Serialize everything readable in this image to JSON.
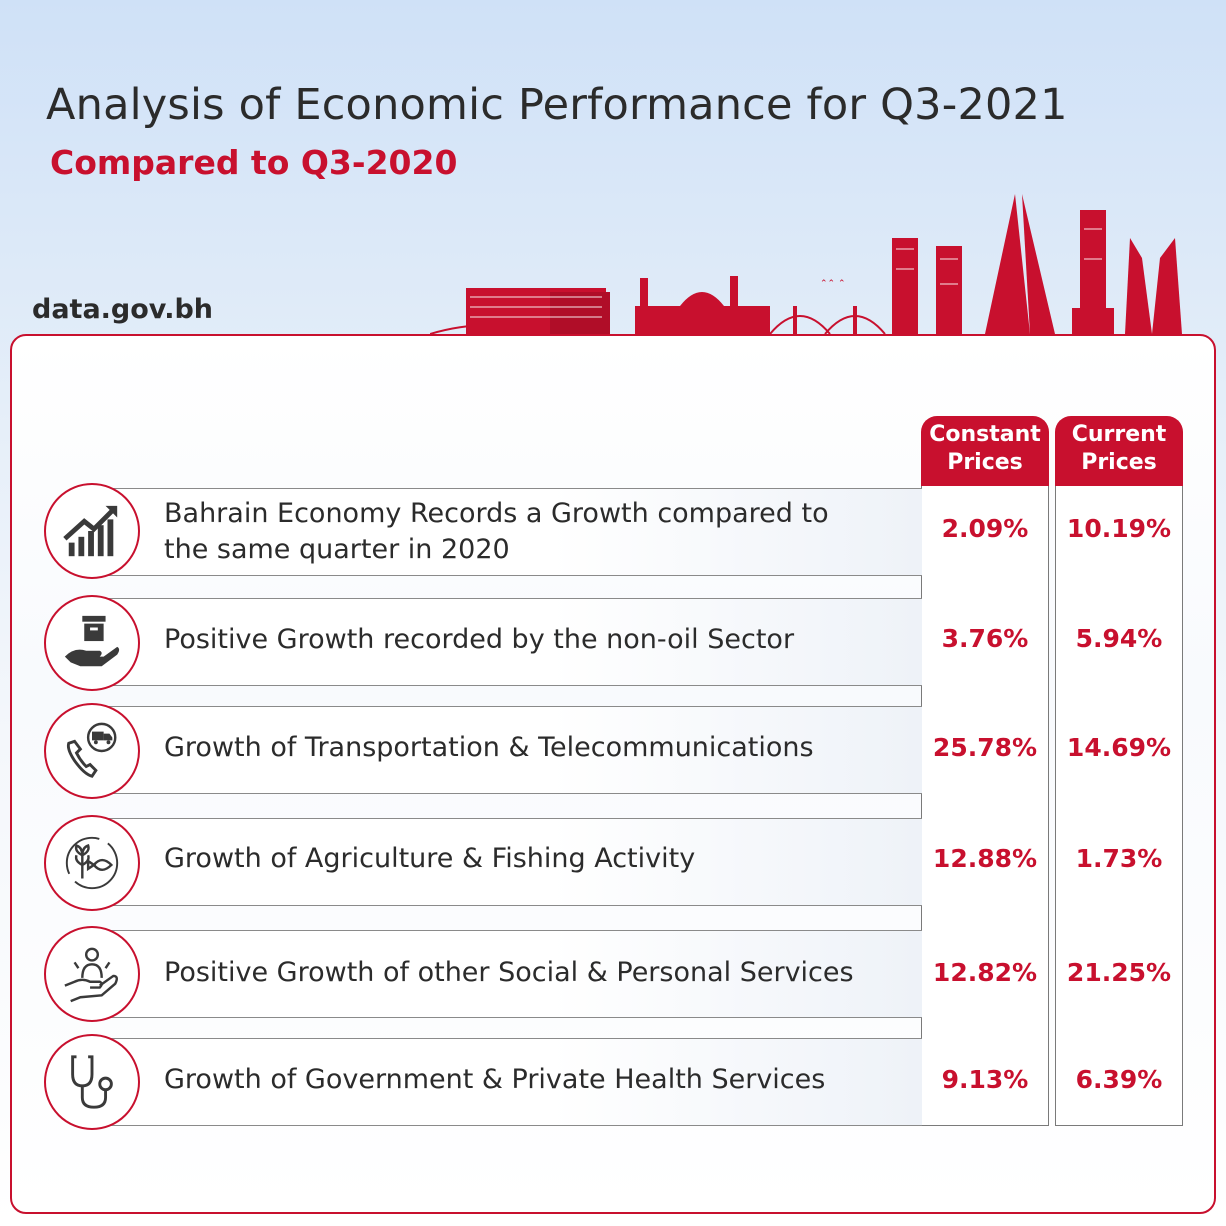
{
  "header": {
    "title": "Analysis of Economic Performance for Q3-2021",
    "subtitle": "Compared to Q3-2020",
    "site": "data.gov.bh"
  },
  "colors": {
    "accent": "#c8102e",
    "text": "#2b2b2b",
    "sky_top": "#cfe1f7"
  },
  "columns": {
    "constant": [
      "Constant",
      "Prices"
    ],
    "current": [
      "Current",
      "Prices"
    ]
  },
  "rows": [
    {
      "icon": "growth-chart-icon",
      "label_lines": [
        "Bahrain Economy Records a Growth compared to",
        "the same quarter in 2020"
      ],
      "constant": "2.09%",
      "current": "10.19%"
    },
    {
      "icon": "hand-box-icon",
      "label_lines": [
        "Positive Growth recorded by the non-oil Sector"
      ],
      "constant": "3.76%",
      "current": "5.94%"
    },
    {
      "icon": "phone-truck-icon",
      "label_lines": [
        "Growth of Transportation & Telecommunications"
      ],
      "constant": "25.78%",
      "current": "14.69%"
    },
    {
      "icon": "wheat-fish-icon",
      "label_lines": [
        "Growth of Agriculture & Fishing Activity"
      ],
      "constant": "12.88%",
      "current": "1.73%"
    },
    {
      "icon": "hand-person-icon",
      "label_lines": [
        "Positive Growth of other Social & Personal Services"
      ],
      "constant": "12.82%",
      "current": "21.25%"
    },
    {
      "icon": "stethoscope-icon",
      "label_lines": [
        "Growth of Government & Private Health Services"
      ],
      "constant": "9.13%",
      "current": "6.39%"
    }
  ]
}
